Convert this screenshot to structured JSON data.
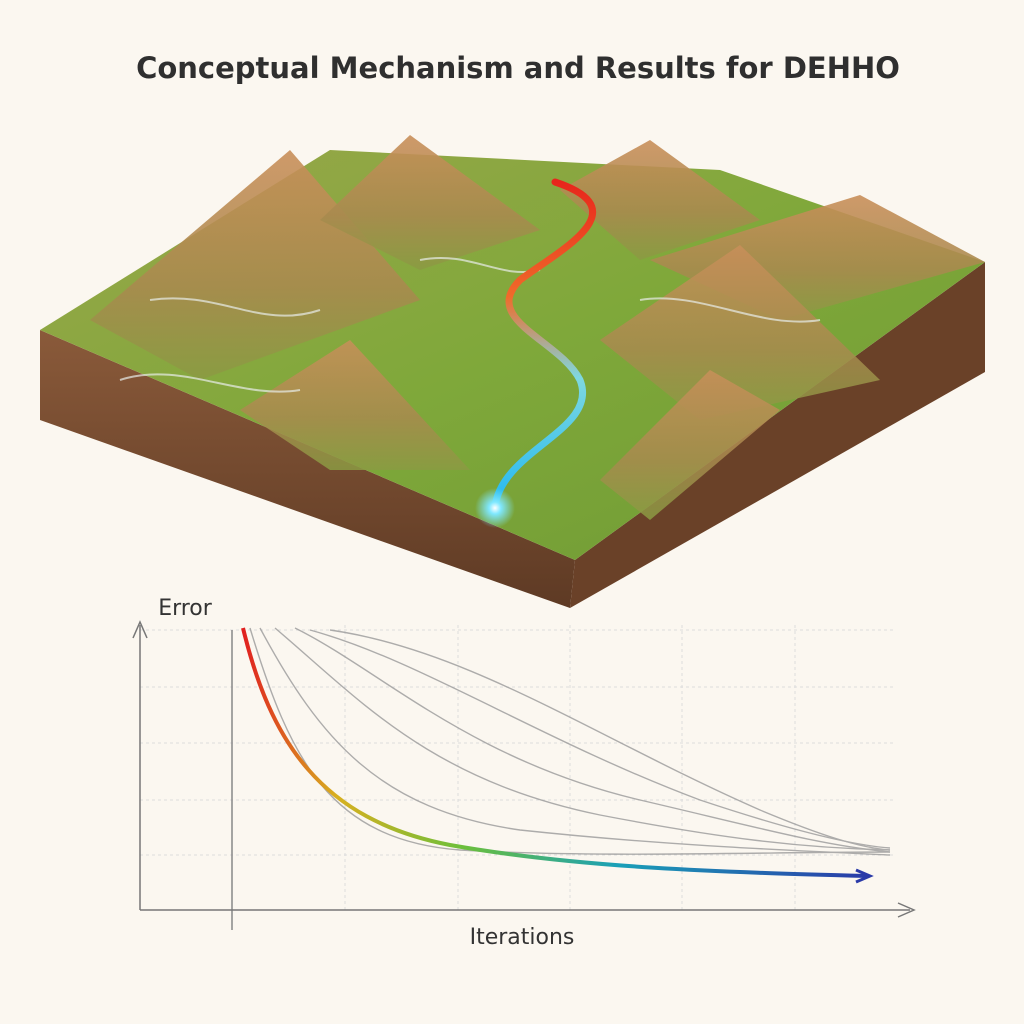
{
  "header": {
    "title": "Conceptual Mechanism and Results for DEHHO"
  },
  "chart": {
    "y_label": "Error",
    "x_label": "Iterations"
  }
}
